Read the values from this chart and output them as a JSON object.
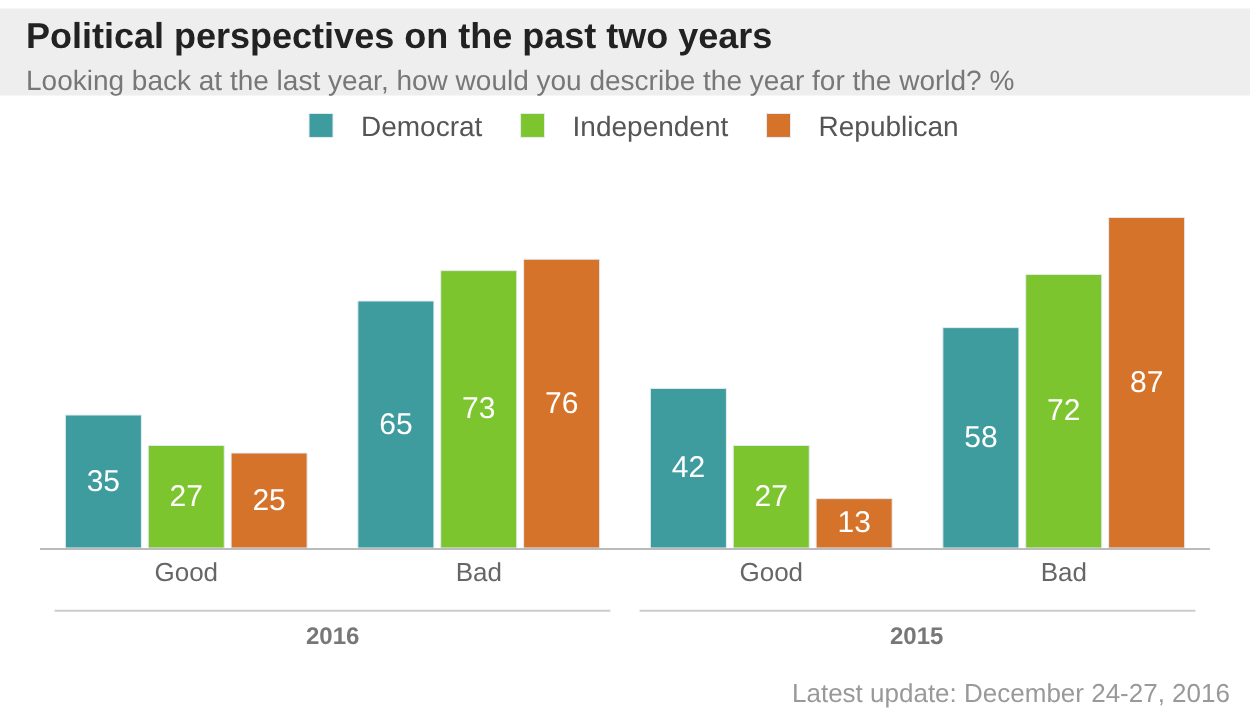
{
  "chart_data": {
    "type": "bar",
    "title": "Political perspectives on the past two years",
    "subtitle": "Looking back at the last year, how would you describe the year for the world? %",
    "categories": [
      "Good",
      "Bad",
      "Good",
      "Bad"
    ],
    "series": [
      {
        "name": "Democrat",
        "color": "#3e9c9f",
        "values": [
          35,
          65,
          42,
          58
        ]
      },
      {
        "name": "Independent",
        "color": "#7dc52e",
        "values": [
          27,
          73,
          27,
          72
        ]
      },
      {
        "name": "Republican",
        "color": "#d6732a",
        "values": [
          25,
          76,
          13,
          87
        ]
      }
    ],
    "annotations": [
      "2016",
      "2015",
      "Latest update: December 24-27, 2016"
    ],
    "data_labels": true,
    "legend": "top"
  }
}
